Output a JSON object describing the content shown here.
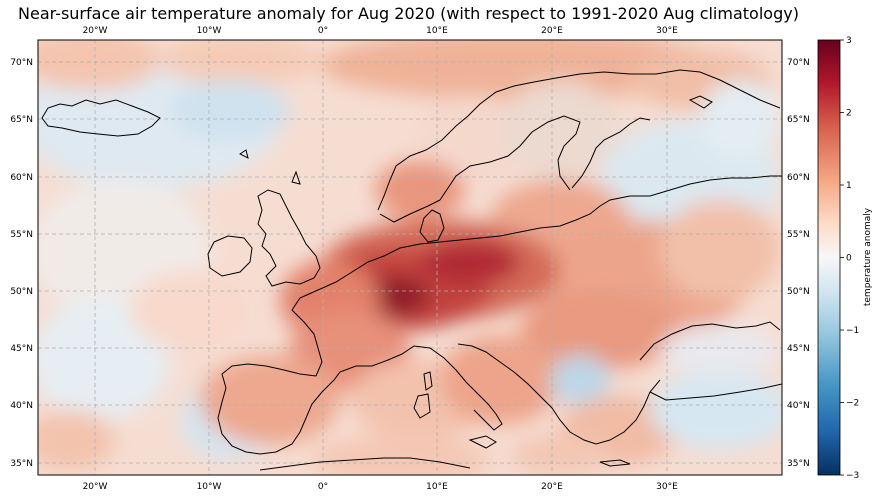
{
  "title": "Near-surface air temperature anomaly for Aug 2020 (with respect to 1991-2020 Aug climatology)",
  "map": {
    "lon_ticks": [
      "20°W",
      "10°W",
      "0°",
      "10°E",
      "20°E",
      "30°E"
    ],
    "lat_ticks": [
      "70°N",
      "65°N",
      "60°N",
      "55°N",
      "50°N",
      "45°N",
      "40°N",
      "35°N"
    ],
    "gridlines": "dashed"
  },
  "colorbar": {
    "label": "temperature anomaly",
    "ticks": [
      "3",
      "2",
      "1",
      "0",
      "−1",
      "−2",
      "−3"
    ],
    "range": [
      -3,
      3
    ],
    "colormap": [
      "#67001f",
      "#b2182b",
      "#d6604d",
      "#f4a582",
      "#fddbc7",
      "#f7f7f7",
      "#d1e5f0",
      "#92c5de",
      "#4393c3",
      "#2166ac",
      "#053061"
    ]
  },
  "colors": {
    "ocean_neutral": "#f3f0ee",
    "warm_light": "#f9c9b3",
    "warm_mid": "#e89076",
    "warm_strong": "#c9534a",
    "warm_max": "#8f1a2a",
    "cool_light": "#d8e8f2",
    "cool_mid": "#a9cce3",
    "coastline": "#000000",
    "grid": "#b0b0b0"
  }
}
